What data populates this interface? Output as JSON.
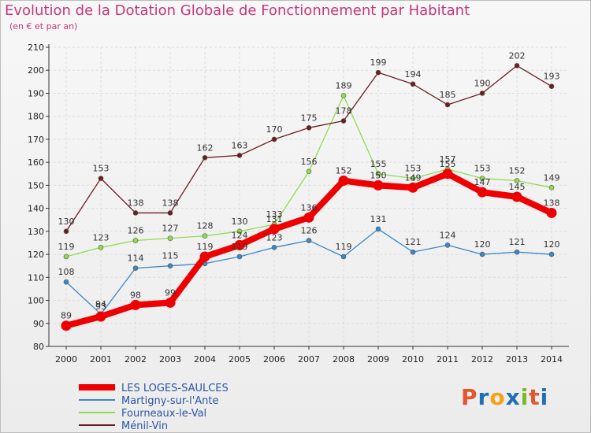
{
  "title": "Evolution de la Dotation Globale de Fonctionnement par Habitant",
  "subtitle": "(en € et par an)",
  "logo": {
    "text": "Proxiti",
    "colors": [
      "#e2572b",
      "#1f6fb5",
      "#f3a21a",
      "#1f6fb5",
      "#7ab828",
      "#e2572b",
      "#1f6fb5"
    ]
  },
  "chart_data": {
    "type": "line",
    "x": [
      "2000",
      "2001",
      "2002",
      "2003",
      "2004",
      "2005",
      "2006",
      "2007",
      "2008",
      "2009",
      "2010",
      "2011",
      "2012",
      "2013",
      "2014"
    ],
    "ylim": [
      80,
      210
    ],
    "yticks": [
      80,
      90,
      100,
      110,
      120,
      130,
      140,
      150,
      160,
      170,
      180,
      190,
      200,
      210
    ],
    "grid": true,
    "legend_position": "bottom-left",
    "series": [
      {
        "name": "LES LOGES-SAULCES",
        "color": "#ee0000",
        "emphasis": true,
        "values": [
          89,
          93,
          98,
          99,
          119,
          124,
          131,
          136,
          152,
          150,
          149,
          155,
          147,
          145,
          138
        ]
      },
      {
        "name": "Martigny-sur-l'Ante",
        "color": "#3a87c8",
        "values": [
          108,
          94,
          114,
          115,
          116,
          119,
          123,
          126,
          119,
          131,
          121,
          124,
          120,
          121,
          120
        ]
      },
      {
        "name": "Fourneaux-le-Val",
        "color": "#8fdc50",
        "values": [
          119,
          123,
          126,
          127,
          128,
          130,
          133,
          156,
          189,
          155,
          153,
          157,
          153,
          152,
          149
        ]
      },
      {
        "name": "Ménil-Vin",
        "color": "#6b1e1e",
        "values": [
          130,
          153,
          138,
          138,
          162,
          163,
          170,
          175,
          178,
          199,
          194,
          185,
          190,
          202,
          193
        ]
      }
    ],
    "point_labels": [
      {
        "x": "2000",
        "y": 89,
        "text": "89"
      },
      {
        "x": "2001",
        "y": 93,
        "text": "93"
      },
      {
        "x": "2002",
        "y": 98,
        "text": "98"
      },
      {
        "x": "2003",
        "y": 99,
        "text": "99"
      },
      {
        "x": "2004",
        "y": 119,
        "text": "119"
      },
      {
        "x": "2005",
        "y": 124,
        "text": "124"
      },
      {
        "x": "2006",
        "y": 131,
        "text": "131"
      },
      {
        "x": "2007",
        "y": 136,
        "text": "136"
      },
      {
        "x": "2008",
        "y": 152,
        "text": "152"
      },
      {
        "x": "2009",
        "y": 150,
        "text": "150"
      },
      {
        "x": "2010",
        "y": 149,
        "text": "149"
      },
      {
        "x": "2011",
        "y": 155,
        "text": "155"
      },
      {
        "x": "2012",
        "y": 147,
        "text": "147"
      },
      {
        "x": "2013",
        "y": 145,
        "text": "145"
      },
      {
        "x": "2014",
        "y": 138,
        "text": "138"
      },
      {
        "x": "2000",
        "y": 108,
        "text": "108"
      },
      {
        "x": "2001",
        "y": 94,
        "text": "94"
      },
      {
        "x": "2002",
        "y": 114,
        "text": "114"
      },
      {
        "x": "2003",
        "y": 115,
        "text": "115"
      },
      {
        "x": "2005",
        "y": 119,
        "text": "119"
      },
      {
        "x": "2006",
        "y": 123,
        "text": "123"
      },
      {
        "x": "2007",
        "y": 126,
        "text": "126"
      },
      {
        "x": "2008",
        "y": 119,
        "text": "119"
      },
      {
        "x": "2009",
        "y": 131,
        "text": "131"
      },
      {
        "x": "2010",
        "y": 121,
        "text": "121"
      },
      {
        "x": "2011",
        "y": 124,
        "text": "124"
      },
      {
        "x": "2012",
        "y": 120,
        "text": "120"
      },
      {
        "x": "2013",
        "y": 121,
        "text": "121"
      },
      {
        "x": "2014",
        "y": 120,
        "text": "120"
      },
      {
        "x": "2000",
        "y": 119,
        "text": "119"
      },
      {
        "x": "2001",
        "y": 123,
        "text": "123"
      },
      {
        "x": "2002",
        "y": 126,
        "text": "126"
      },
      {
        "x": "2003",
        "y": 127,
        "text": "127"
      },
      {
        "x": "2004",
        "y": 128,
        "text": "128"
      },
      {
        "x": "2005",
        "y": 130,
        "text": "130"
      },
      {
        "x": "2006",
        "y": 133,
        "text": "133"
      },
      {
        "x": "2007",
        "y": 156,
        "text": "156"
      },
      {
        "x": "2008",
        "y": 189,
        "text": "189"
      },
      {
        "x": "2009",
        "y": 155,
        "text": "155"
      },
      {
        "x": "2010",
        "y": 153,
        "text": "153"
      },
      {
        "x": "2011",
        "y": 157,
        "text": "157"
      },
      {
        "x": "2012",
        "y": 153,
        "text": "153"
      },
      {
        "x": "2013",
        "y": 152,
        "text": "152"
      },
      {
        "x": "2014",
        "y": 149,
        "text": "149"
      },
      {
        "x": "2000",
        "y": 130,
        "text": "130"
      },
      {
        "x": "2001",
        "y": 153,
        "text": "153"
      },
      {
        "x": "2002",
        "y": 138,
        "text": "138"
      },
      {
        "x": "2003",
        "y": 138,
        "text": "138"
      },
      {
        "x": "2004",
        "y": 162,
        "text": "162"
      },
      {
        "x": "2005",
        "y": 163,
        "text": "163"
      },
      {
        "x": "2006",
        "y": 170,
        "text": "170"
      },
      {
        "x": "2007",
        "y": 175,
        "text": "175"
      },
      {
        "x": "2008",
        "y": 178,
        "text": "178"
      },
      {
        "x": "2009",
        "y": 199,
        "text": "199"
      },
      {
        "x": "2010",
        "y": 194,
        "text": "194"
      },
      {
        "x": "2011",
        "y": 185,
        "text": "185"
      },
      {
        "x": "2012",
        "y": 190,
        "text": "190"
      },
      {
        "x": "2013",
        "y": 202,
        "text": "202"
      },
      {
        "x": "2014",
        "y": 193,
        "text": "193"
      }
    ]
  }
}
